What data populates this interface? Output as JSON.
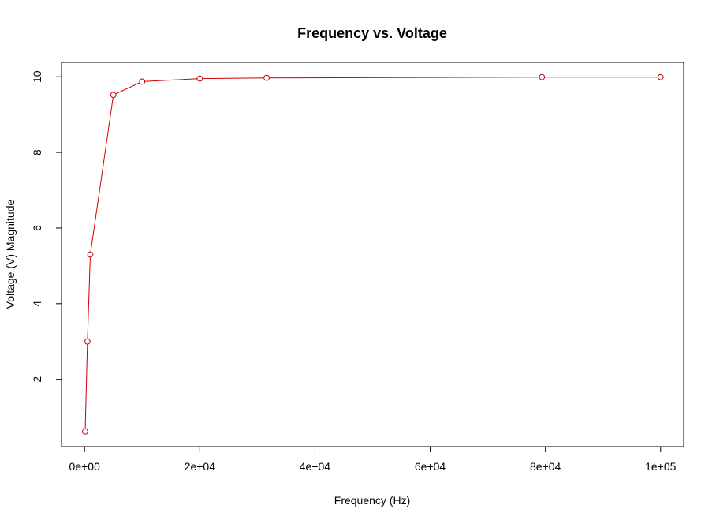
{
  "chart_data": {
    "type": "line",
    "title": "Frequency vs. Voltage",
    "xlabel": "Frequency (Hz)",
    "ylabel": "Voltage (V) Magnitude",
    "xlim": [
      -4000,
      104000
    ],
    "ylim": [
      0.22,
      10.38
    ],
    "x_ticks": [
      {
        "value": 0,
        "label": "0e+00"
      },
      {
        "value": 20000,
        "label": "2e+04"
      },
      {
        "value": 40000,
        "label": "4e+04"
      },
      {
        "value": 60000,
        "label": "6e+04"
      },
      {
        "value": 80000,
        "label": "8e+04"
      },
      {
        "value": 100000,
        "label": "1e+05"
      }
    ],
    "y_ticks": [
      {
        "value": 2,
        "label": "2"
      },
      {
        "value": 4,
        "label": "4"
      },
      {
        "value": 6,
        "label": "6"
      },
      {
        "value": 8,
        "label": "8"
      },
      {
        "value": 10,
        "label": "10"
      }
    ],
    "grid": false,
    "line_color": "#cc0000",
    "marker": "open-circle",
    "series": [
      {
        "x": [
          100,
          500,
          1000,
          5000,
          10000,
          20000,
          31600,
          79400,
          100000
        ],
        "y": [
          0.62,
          3.0,
          5.3,
          9.52,
          9.87,
          9.95,
          9.97,
          9.99,
          9.99
        ]
      }
    ]
  }
}
